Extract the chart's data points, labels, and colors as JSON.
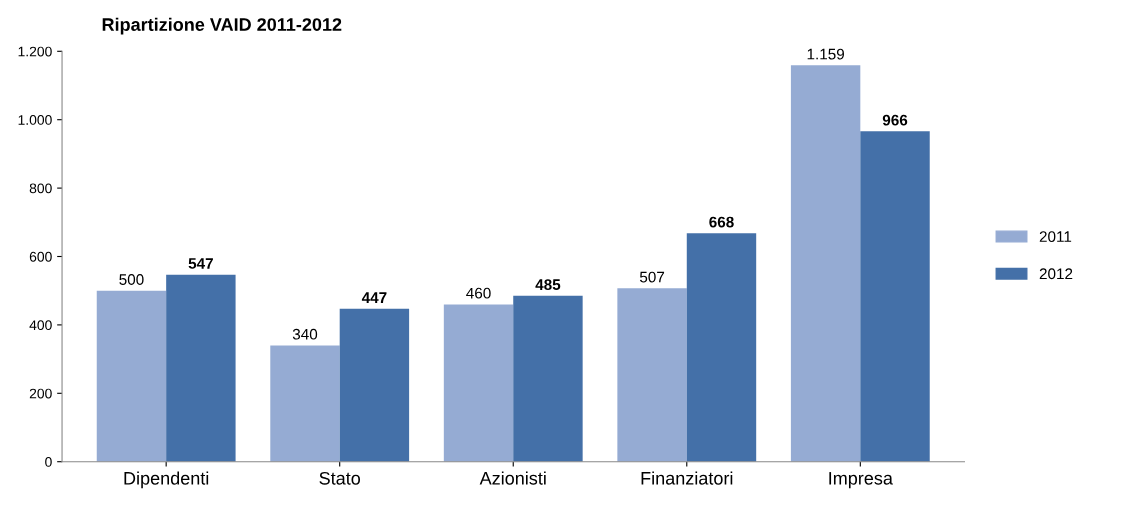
{
  "chart_data": {
    "type": "bar",
    "title": "Ripartizione VAID 2011-2012",
    "categories": [
      "Dipendenti",
      "Stato",
      "Azionisti",
      "Finanziatori",
      "Impresa"
    ],
    "series": [
      {
        "name": "2011",
        "color": "#95abd3",
        "values": [
          500,
          340,
          460,
          507,
          1159
        ],
        "value_labels": [
          "500",
          "340",
          "460",
          "507",
          "1.159"
        ]
      },
      {
        "name": "2012",
        "color": "#4470a8",
        "values": [
          547,
          447,
          485,
          668,
          966
        ],
        "value_labels": [
          "547",
          "447",
          "485",
          "668",
          "966"
        ]
      }
    ],
    "ylim": [
      0,
      1200
    ],
    "yticks": [
      0,
      200,
      400,
      600,
      800,
      {
        "value": 1000,
        "label": "1.000"
      },
      {
        "value": 1200,
        "label": "1.200"
      }
    ],
    "grid": false,
    "legend": "right"
  }
}
